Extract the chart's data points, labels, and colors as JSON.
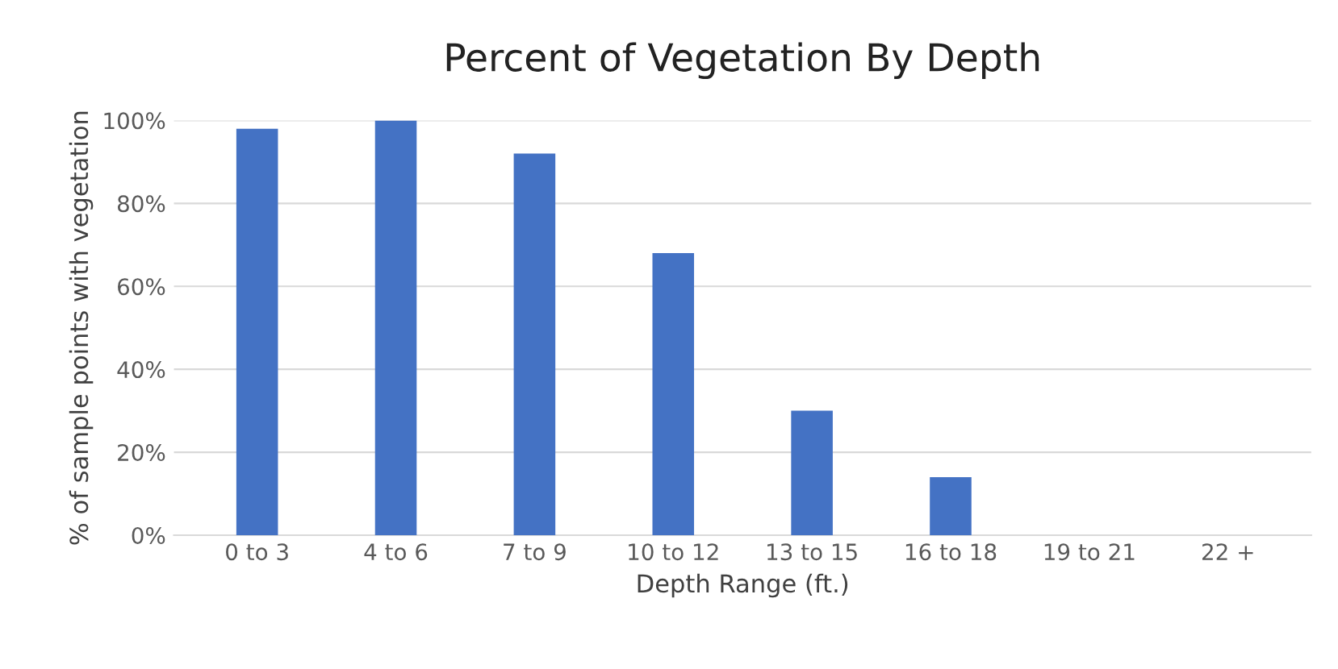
{
  "chart_data": {
    "type": "bar",
    "title": "Percent of Vegetation By Depth",
    "xlabel": "Depth Range (ft.)",
    "ylabel": "% of sample points with vegetation",
    "categories": [
      "0 to 3",
      "4 to 6",
      "7 to 9",
      "10 to 12",
      "13 to 15",
      "16 to 18",
      "19 to 21",
      "22 +"
    ],
    "values": [
      98,
      100,
      92,
      68,
      30,
      14,
      0,
      0
    ],
    "color": "#4472c4",
    "ylim": [
      0,
      100
    ],
    "yticks": [
      {
        "value": 0,
        "label": "0%"
      },
      {
        "value": 20,
        "label": "20%"
      },
      {
        "value": 40,
        "label": "40%"
      },
      {
        "value": 60,
        "label": "60%"
      },
      {
        "value": 80,
        "label": "80%"
      },
      {
        "value": 100,
        "label": "100%"
      }
    ],
    "grid": "y"
  }
}
